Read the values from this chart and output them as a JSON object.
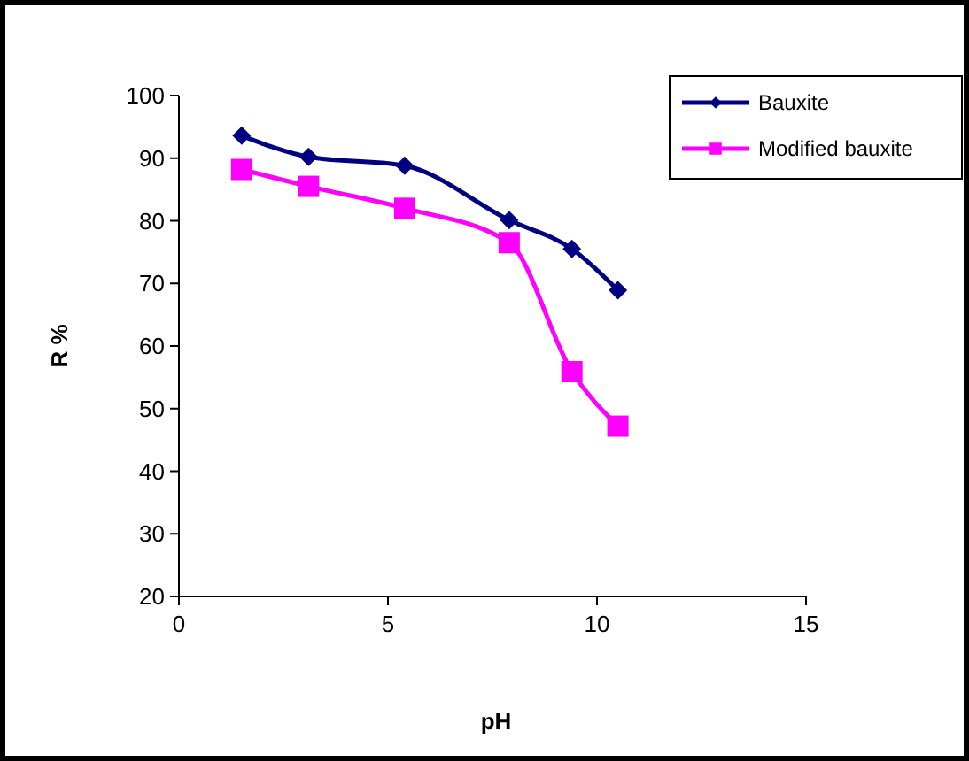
{
  "chart_data": {
    "type": "line",
    "xlabel": "pH",
    "ylabel": "R %",
    "xlim": [
      0,
      15
    ],
    "xticks": [
      0,
      5,
      10,
      15
    ],
    "ylim": [
      20,
      100
    ],
    "yticks": [
      20,
      30,
      40,
      50,
      60,
      70,
      80,
      90,
      100
    ],
    "grid": false,
    "legend": "top right",
    "series": [
      {
        "name": "Bauxite",
        "color": "#000080",
        "marker": "diamond",
        "x": [
          1.5,
          3.1,
          5.4,
          7.9,
          9.4,
          10.5
        ],
        "values": [
          93.6,
          90.2,
          88.8,
          80.1,
          75.5,
          68.9
        ]
      },
      {
        "name": "Modified bauxite",
        "color": "#ff00ff",
        "marker": "square",
        "x": [
          1.5,
          3.1,
          5.4,
          7.9,
          9.4,
          10.5
        ],
        "values": [
          88.2,
          85.5,
          82,
          76.5,
          55.9,
          47.2
        ]
      }
    ]
  }
}
